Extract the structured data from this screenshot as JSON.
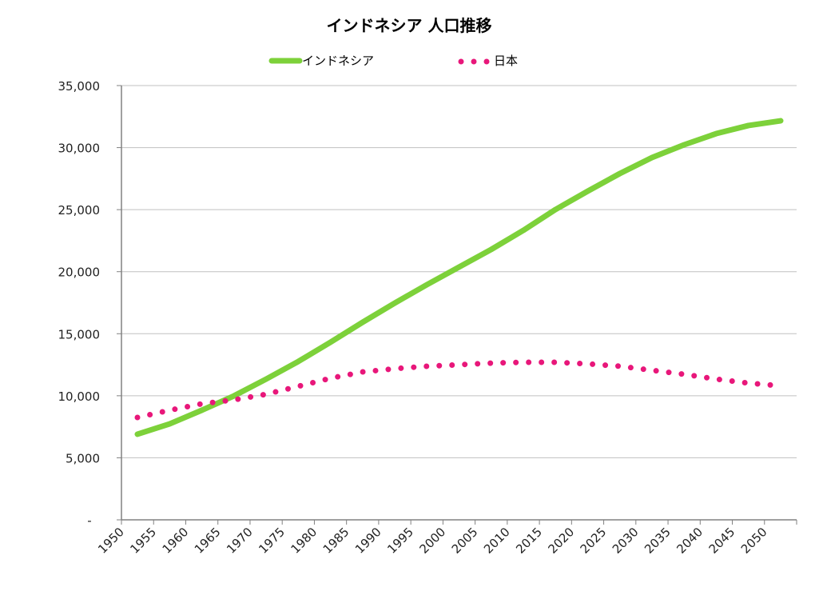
{
  "chart_data": {
    "type": "line",
    "title": "インドネシア 人口推移",
    "xlabel": "",
    "ylabel": "",
    "ylim": [
      0,
      35000
    ],
    "yticks": [
      "-",
      "5,000",
      "10,000",
      "15,000",
      "20,000",
      "25,000",
      "30,000",
      "35,000"
    ],
    "ytick_values": [
      0,
      5000,
      10000,
      15000,
      20000,
      25000,
      30000,
      35000
    ],
    "grid": true,
    "legend_position": "top",
    "categories": [
      "1950",
      "1955",
      "1960",
      "1965",
      "1970",
      "1975",
      "1980",
      "1985",
      "1990",
      "1995",
      "2000",
      "2005",
      "2010",
      "2015",
      "2020",
      "2025",
      "2030",
      "2035",
      "2040",
      "2045",
      "2050"
    ],
    "series": [
      {
        "name": "インドネシア",
        "color": "#7dd13a",
        "style": "solid",
        "values": [
          6900,
          7730,
          8830,
          9990,
          11340,
          12760,
          14310,
          15920,
          17470,
          18950,
          20370,
          21790,
          23330,
          25010,
          26490,
          27910,
          29200,
          30230,
          31130,
          31780,
          32160
        ]
      },
      {
        "name": "日本",
        "color": "#e8177a",
        "style": "dotted",
        "values": [
          8250,
          8830,
          9350,
          9670,
          10120,
          10760,
          11410,
          11920,
          12180,
          12380,
          12500,
          12630,
          12700,
          12700,
          12570,
          12380,
          12050,
          11730,
          11340,
          11020,
          10800
        ]
      }
    ]
  }
}
